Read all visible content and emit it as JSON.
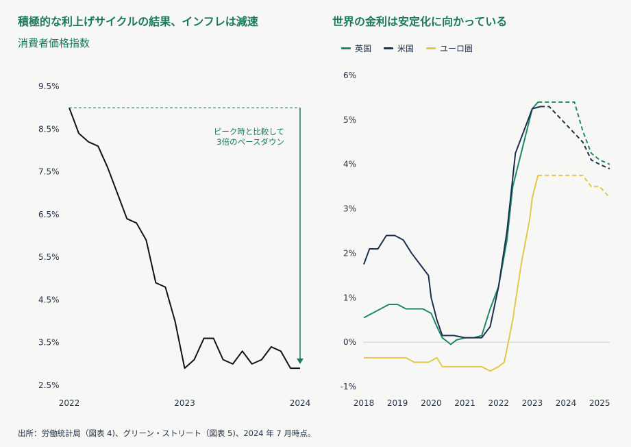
{
  "left_chart": {
    "title": "積極的な利上げサイクルの結果、インフレは減速",
    "subtitle": "消費者価格指数",
    "annotation_lines": [
      "ピーク時と比較して",
      "3倍のペースダウン"
    ]
  },
  "right_chart": {
    "title": "世界の金利は安定化に向かっている"
  },
  "source": "出所：労働統計局（図表 4)、グリーン・ストリート（図表 5)、2024 年 7 月時点。",
  "colors": {
    "accent": "#1a7a5b",
    "uk": "#1a8a64",
    "us": "#1b2f4d",
    "eu": "#e3c64a",
    "cpi": "#111111"
  },
  "chart_data": [
    {
      "type": "line",
      "title": "積極的な利上げサイクルの結果、インフレは減速",
      "ylabel": "消費者価格指数",
      "x_ticks": [
        "2022",
        "2023",
        "2024"
      ],
      "y_ticks": [
        "9.5%",
        "8.5%",
        "7.5%",
        "6.5%",
        "5.5%",
        "4.5%",
        "3.5%",
        "2.5%"
      ],
      "ylim": [
        2.5,
        9.5
      ],
      "xlim": [
        2022.0,
        2024.0
      ],
      "series": [
        {
          "name": "CPI",
          "x": [
            2022.0,
            2022.083,
            2022.167,
            2022.25,
            2022.333,
            2022.417,
            2022.5,
            2022.583,
            2022.667,
            2022.75,
            2022.833,
            2022.917,
            2023.0,
            2023.083,
            2023.167,
            2023.25,
            2023.333,
            2023.417,
            2023.5,
            2023.583,
            2023.667,
            2023.75,
            2023.833,
            2023.917,
            2024.0
          ],
          "values": [
            9.0,
            8.4,
            8.2,
            8.1,
            7.6,
            7.0,
            6.4,
            6.3,
            5.9,
            4.9,
            4.8,
            4.0,
            2.9,
            3.1,
            3.6,
            3.6,
            3.1,
            3.0,
            3.3,
            3.0,
            3.1,
            3.4,
            3.3,
            2.9,
            2.9
          ]
        }
      ],
      "annotations": [
        {
          "text": "ピーク時と比較して 3倍のペースダウン",
          "from_value": 9.0,
          "to_value": 3.0
        }
      ]
    },
    {
      "type": "line",
      "title": "世界の金利は安定化に向かっている",
      "x_ticks": [
        "2018",
        "2019",
        "2020",
        "2021",
        "2022",
        "2023",
        "2024",
        "2025"
      ],
      "y_ticks": [
        "6%",
        "5%",
        "4%",
        "3%",
        "2%",
        "1%",
        "0%",
        "-1%"
      ],
      "ylim": [
        -1,
        6
      ],
      "xlim": [
        2018.0,
        2025.3
      ],
      "legend": [
        "英国",
        "米国",
        "ユーロ圏"
      ],
      "series": [
        {
          "name": "英国",
          "color": "#1a8a64",
          "x": [
            2018.0,
            2018.5,
            2018.75,
            2019.0,
            2019.25,
            2019.5,
            2019.75,
            2020.0,
            2020.17,
            2020.33,
            2020.5,
            2020.58,
            2020.75,
            2021.0,
            2021.25,
            2021.5,
            2021.75,
            2022.0,
            2022.25,
            2022.42,
            2022.67,
            2023.0,
            2023.17
          ],
          "values": [
            0.55,
            0.75,
            0.85,
            0.85,
            0.75,
            0.75,
            0.75,
            0.65,
            0.35,
            0.1,
            0.0,
            -0.05,
            0.05,
            0.1,
            0.1,
            0.15,
            0.75,
            1.25,
            2.3,
            3.5,
            4.25,
            5.25,
            5.4
          ],
          "projection_x": [
            2023.17,
            2023.5,
            2024.0,
            2024.25,
            2024.5,
            2024.75,
            2025.0,
            2025.3
          ],
          "projection_values": [
            5.4,
            5.4,
            5.4,
            5.4,
            4.75,
            4.25,
            4.1,
            4.0
          ]
        },
        {
          "name": "米国",
          "color": "#1b2f4d",
          "x": [
            2018.0,
            2018.17,
            2018.42,
            2018.67,
            2018.92,
            2019.17,
            2019.42,
            2019.67,
            2019.92,
            2020.0,
            2020.17,
            2020.33,
            2020.67,
            2021.0,
            2021.5,
            2021.75,
            2022.0,
            2022.25,
            2022.5,
            2022.75,
            2023.0,
            2023.25
          ],
          "values": [
            1.75,
            2.1,
            2.1,
            2.4,
            2.4,
            2.3,
            2.0,
            1.75,
            1.5,
            1.0,
            0.5,
            0.15,
            0.15,
            0.1,
            0.1,
            0.35,
            1.25,
            2.5,
            4.25,
            4.75,
            5.25,
            5.3
          ],
          "projection_x": [
            2023.25,
            2023.5,
            2023.75,
            2024.0,
            2024.25,
            2024.5,
            2024.75,
            2025.0,
            2025.3
          ],
          "projection_values": [
            5.3,
            5.3,
            5.1,
            4.9,
            4.7,
            4.5,
            4.1,
            4.0,
            3.9
          ]
        },
        {
          "name": "ユーロ圏",
          "color": "#e3c64a",
          "x": [
            2018.0,
            2018.5,
            2019.0,
            2019.25,
            2019.5,
            2019.92,
            2020.17,
            2020.33,
            2020.67,
            2021.0,
            2021.5,
            2021.75,
            2022.0,
            2022.17,
            2022.42,
            2022.67,
            2022.92,
            2023.0,
            2023.17
          ],
          "values": [
            -0.35,
            -0.35,
            -0.35,
            -0.35,
            -0.45,
            -0.45,
            -0.35,
            -0.55,
            -0.55,
            -0.55,
            -0.55,
            -0.65,
            -0.55,
            -0.45,
            0.5,
            1.75,
            2.75,
            3.25,
            3.75
          ],
          "projection_x": [
            2023.17,
            2023.5,
            2024.0,
            2024.25,
            2024.5,
            2024.75,
            2025.0,
            2025.3
          ],
          "projection_values": [
            3.75,
            3.75,
            3.75,
            3.75,
            3.75,
            3.5,
            3.5,
            3.25
          ]
        }
      ]
    }
  ]
}
